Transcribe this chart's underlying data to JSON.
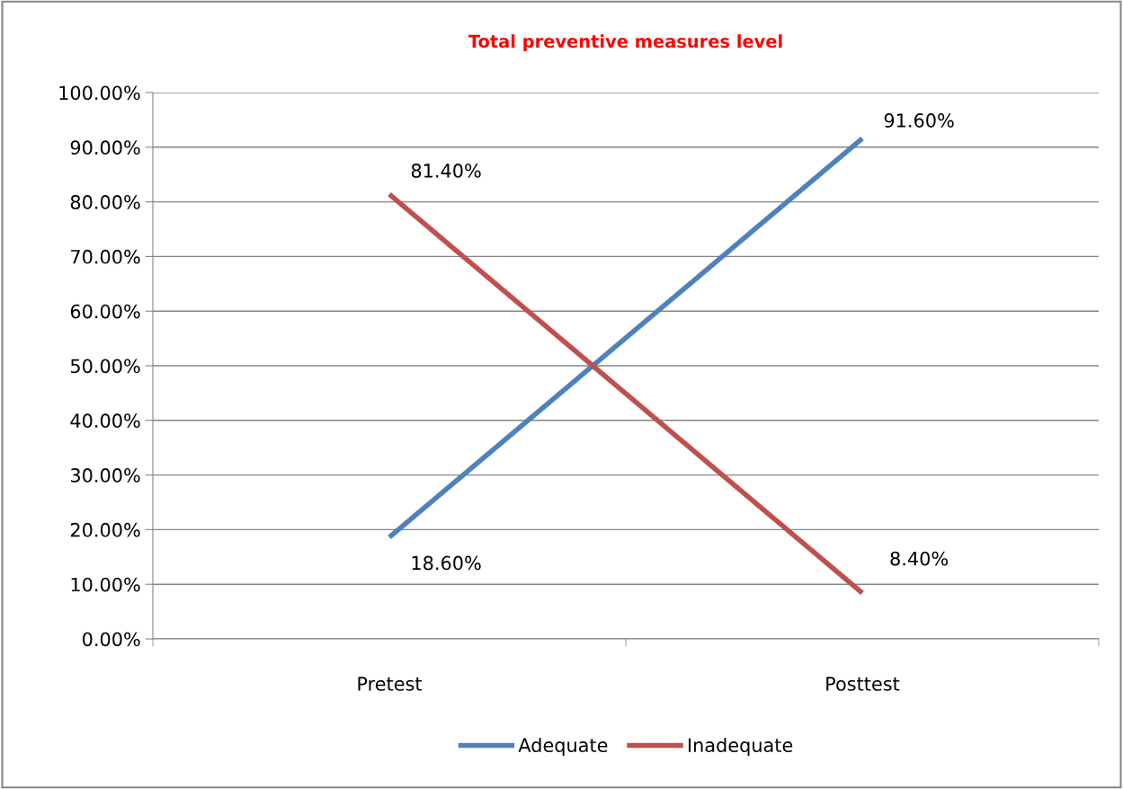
{
  "chart_data": {
    "type": "line",
    "title": "Total preventive measures level",
    "categories": [
      "Pretest",
      "Posttest"
    ],
    "series": [
      {
        "name": "Adequate",
        "color": "#4f81bd",
        "values": [
          18.6,
          91.6
        ],
        "value_labels": [
          "18.60%",
          "91.60%"
        ]
      },
      {
        "name": "Inadequate",
        "color": "#c0504d",
        "values": [
          81.4,
          8.4
        ],
        "value_labels": [
          "81.40%",
          "8.40%"
        ]
      }
    ],
    "ylim": [
      0,
      100
    ],
    "yticks": [
      {
        "value": 0,
        "label": "0.00%"
      },
      {
        "value": 10,
        "label": "10.00%"
      },
      {
        "value": 20,
        "label": "20.00%"
      },
      {
        "value": 30,
        "label": "30.00%"
      },
      {
        "value": 40,
        "label": "40.00%"
      },
      {
        "value": 50,
        "label": "50.00%"
      },
      {
        "value": 60,
        "label": "60.00%"
      },
      {
        "value": 70,
        "label": "70.00%"
      },
      {
        "value": 80,
        "label": "80.00%"
      },
      {
        "value": 90,
        "label": "90.00%"
      },
      {
        "value": 100,
        "label": "100.00%"
      }
    ],
    "grid": "y",
    "legend": "bottom",
    "marker": "none",
    "line_style": "solid"
  }
}
